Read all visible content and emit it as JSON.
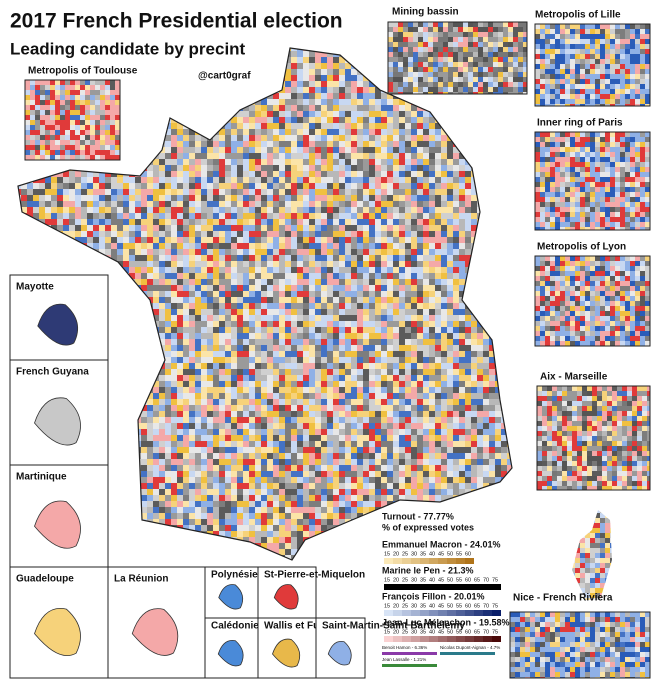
{
  "header": {
    "title": "2017 French Presidential election",
    "subtitle": "Leading candidate by precint",
    "credit": "@cart0graf"
  },
  "insets": {
    "toulouse": "Metropolis of Toulouse",
    "mining": "Mining bassin",
    "lille": "Metropolis of Lille",
    "paris": "Inner ring of Paris",
    "lyon": "Metropolis of Lyon",
    "marseille": "Aix - Marseille",
    "nice": "Nice - French Riviera"
  },
  "overseas": {
    "mayotte": "Mayotte",
    "guyana": "French Guyana",
    "martinique": "Martinique",
    "guadeloupe": "Guadeloupe",
    "reunion": "La Réunion",
    "polynesie": "Polynésie",
    "stpierre": "St-Pierre-et-Miquelon",
    "caledonie": "Calédonie - Kanaky",
    "wallis": "Wallis et Futuna",
    "stmartin": "Saint-Martin-Saint Barthelemy"
  },
  "legend": {
    "turnout": "Turnout - 77.77%",
    "subtitle": "% of expressed votes",
    "candidates": [
      {
        "name": "Emmanuel Macron - 24.01%",
        "scale": [
          "15",
          "20",
          "25",
          "30",
          "35",
          "40",
          "45",
          "50",
          "55",
          "60"
        ]
      },
      {
        "name": "Marine le Pen - 21.3%",
        "scale": [
          "15",
          "20",
          "25",
          "30",
          "35",
          "40",
          "45",
          "50",
          "55",
          "60",
          "65",
          "70",
          "75"
        ]
      },
      {
        "name": "François Fillon - 20.01%",
        "scale": [
          "15",
          "20",
          "25",
          "30",
          "35",
          "40",
          "45",
          "50",
          "55",
          "60",
          "65",
          "70",
          "75"
        ]
      },
      {
        "name": "Jean-Luc Mélenchon - 19.58%",
        "scale": [
          "15",
          "20",
          "25",
          "30",
          "35",
          "40",
          "45",
          "50",
          "55",
          "60",
          "65",
          "70",
          "75"
        ]
      }
    ],
    "minor": [
      "Benoit Hamon - 6.36%",
      "Nicolas Dupont-Aignan - 4.7%",
      "Jean Lassalle - 1.21%"
    ]
  }
}
